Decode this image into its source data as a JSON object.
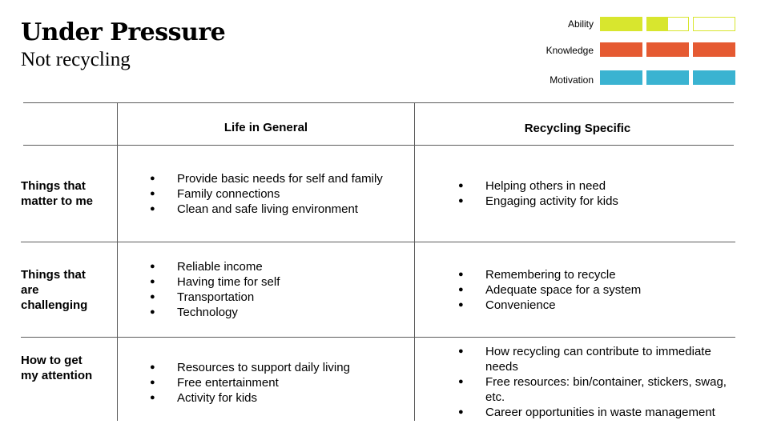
{
  "header": {
    "title": "Under Pressure",
    "subtitle": "Not recycling"
  },
  "legend": [
    {
      "label": "Ability",
      "color": "#d8e62e",
      "level": 0.5,
      "segments": 3
    },
    {
      "label": "Knowledge",
      "color": "#e55a32",
      "level": 1,
      "segments": 3
    },
    {
      "label": "Motivation",
      "color": "#3ab3d1",
      "level": 1,
      "segments": 3
    }
  ],
  "table": {
    "columns": [
      "Life in General",
      "Recycling Specific"
    ],
    "rows": [
      {
        "label": "Things that matter to me",
        "general": [
          "Provide basic needs for self and family",
          "Family connections",
          "Clean and safe living environment"
        ],
        "recycling": [
          "Helping others in need",
          "Engaging activity for kids"
        ]
      },
      {
        "label": "Things that are challenging",
        "general": [
          "Reliable income",
          "Having time for self",
          "Transportation",
          "Technology"
        ],
        "recycling": [
          "Remembering to recycle",
          "Adequate space for a system",
          "Convenience"
        ]
      },
      {
        "label": "How to get my attention",
        "general": [
          "Resources to support daily living",
          "Free entertainment",
          "Activity for kids"
        ],
        "recycling": [
          "How recycling can contribute to immediate needs",
          "Free resources: bin/container, stickers, swag, etc.",
          "Career opportunities in waste management"
        ]
      }
    ]
  }
}
